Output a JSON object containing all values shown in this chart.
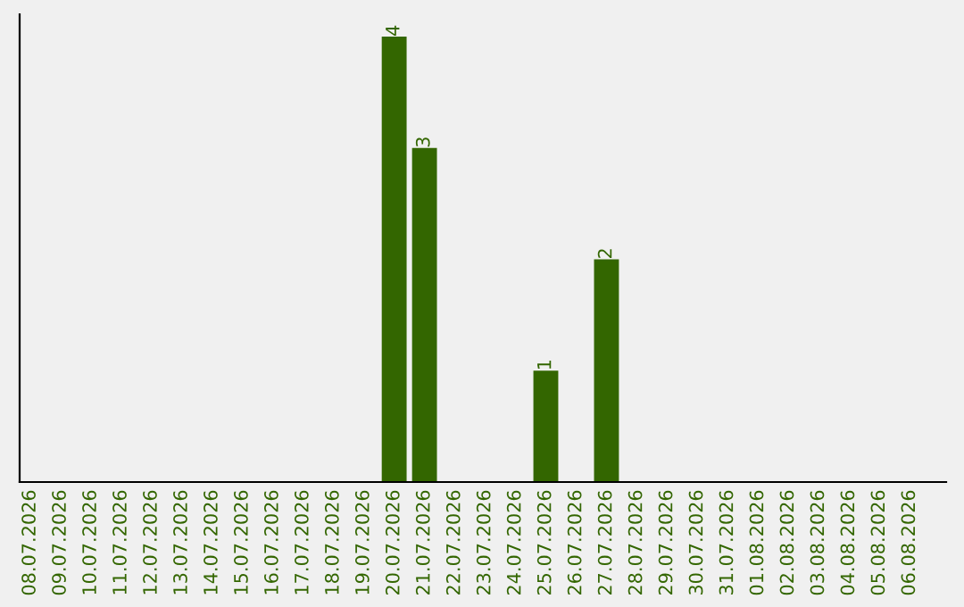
{
  "chart_data": {
    "type": "bar",
    "categories": [
      "08.07.2026",
      "09.07.2026",
      "10.07.2026",
      "11.07.2026",
      "12.07.2026",
      "13.07.2026",
      "14.07.2026",
      "15.07.2026",
      "16.07.2026",
      "17.07.2026",
      "18.07.2026",
      "19.07.2026",
      "20.07.2026",
      "21.07.2026",
      "22.07.2026",
      "23.07.2026",
      "24.07.2026",
      "25.07.2026",
      "26.07.2026",
      "27.07.2026",
      "28.07.2026",
      "29.07.2026",
      "30.07.2026",
      "31.07.2026",
      "01.08.2026",
      "02.08.2026",
      "03.08.2026",
      "04.08.2026",
      "05.08.2026",
      "06.08.2026"
    ],
    "values": [
      null,
      null,
      null,
      null,
      null,
      null,
      null,
      null,
      null,
      null,
      null,
      null,
      4,
      3,
      null,
      null,
      null,
      1,
      null,
      2,
      null,
      null,
      null,
      null,
      null,
      null,
      null,
      null,
      null,
      null
    ],
    "data_labels": true,
    "color": "#336600",
    "tick_labels": "x",
    "grid": false,
    "legend": false
  }
}
